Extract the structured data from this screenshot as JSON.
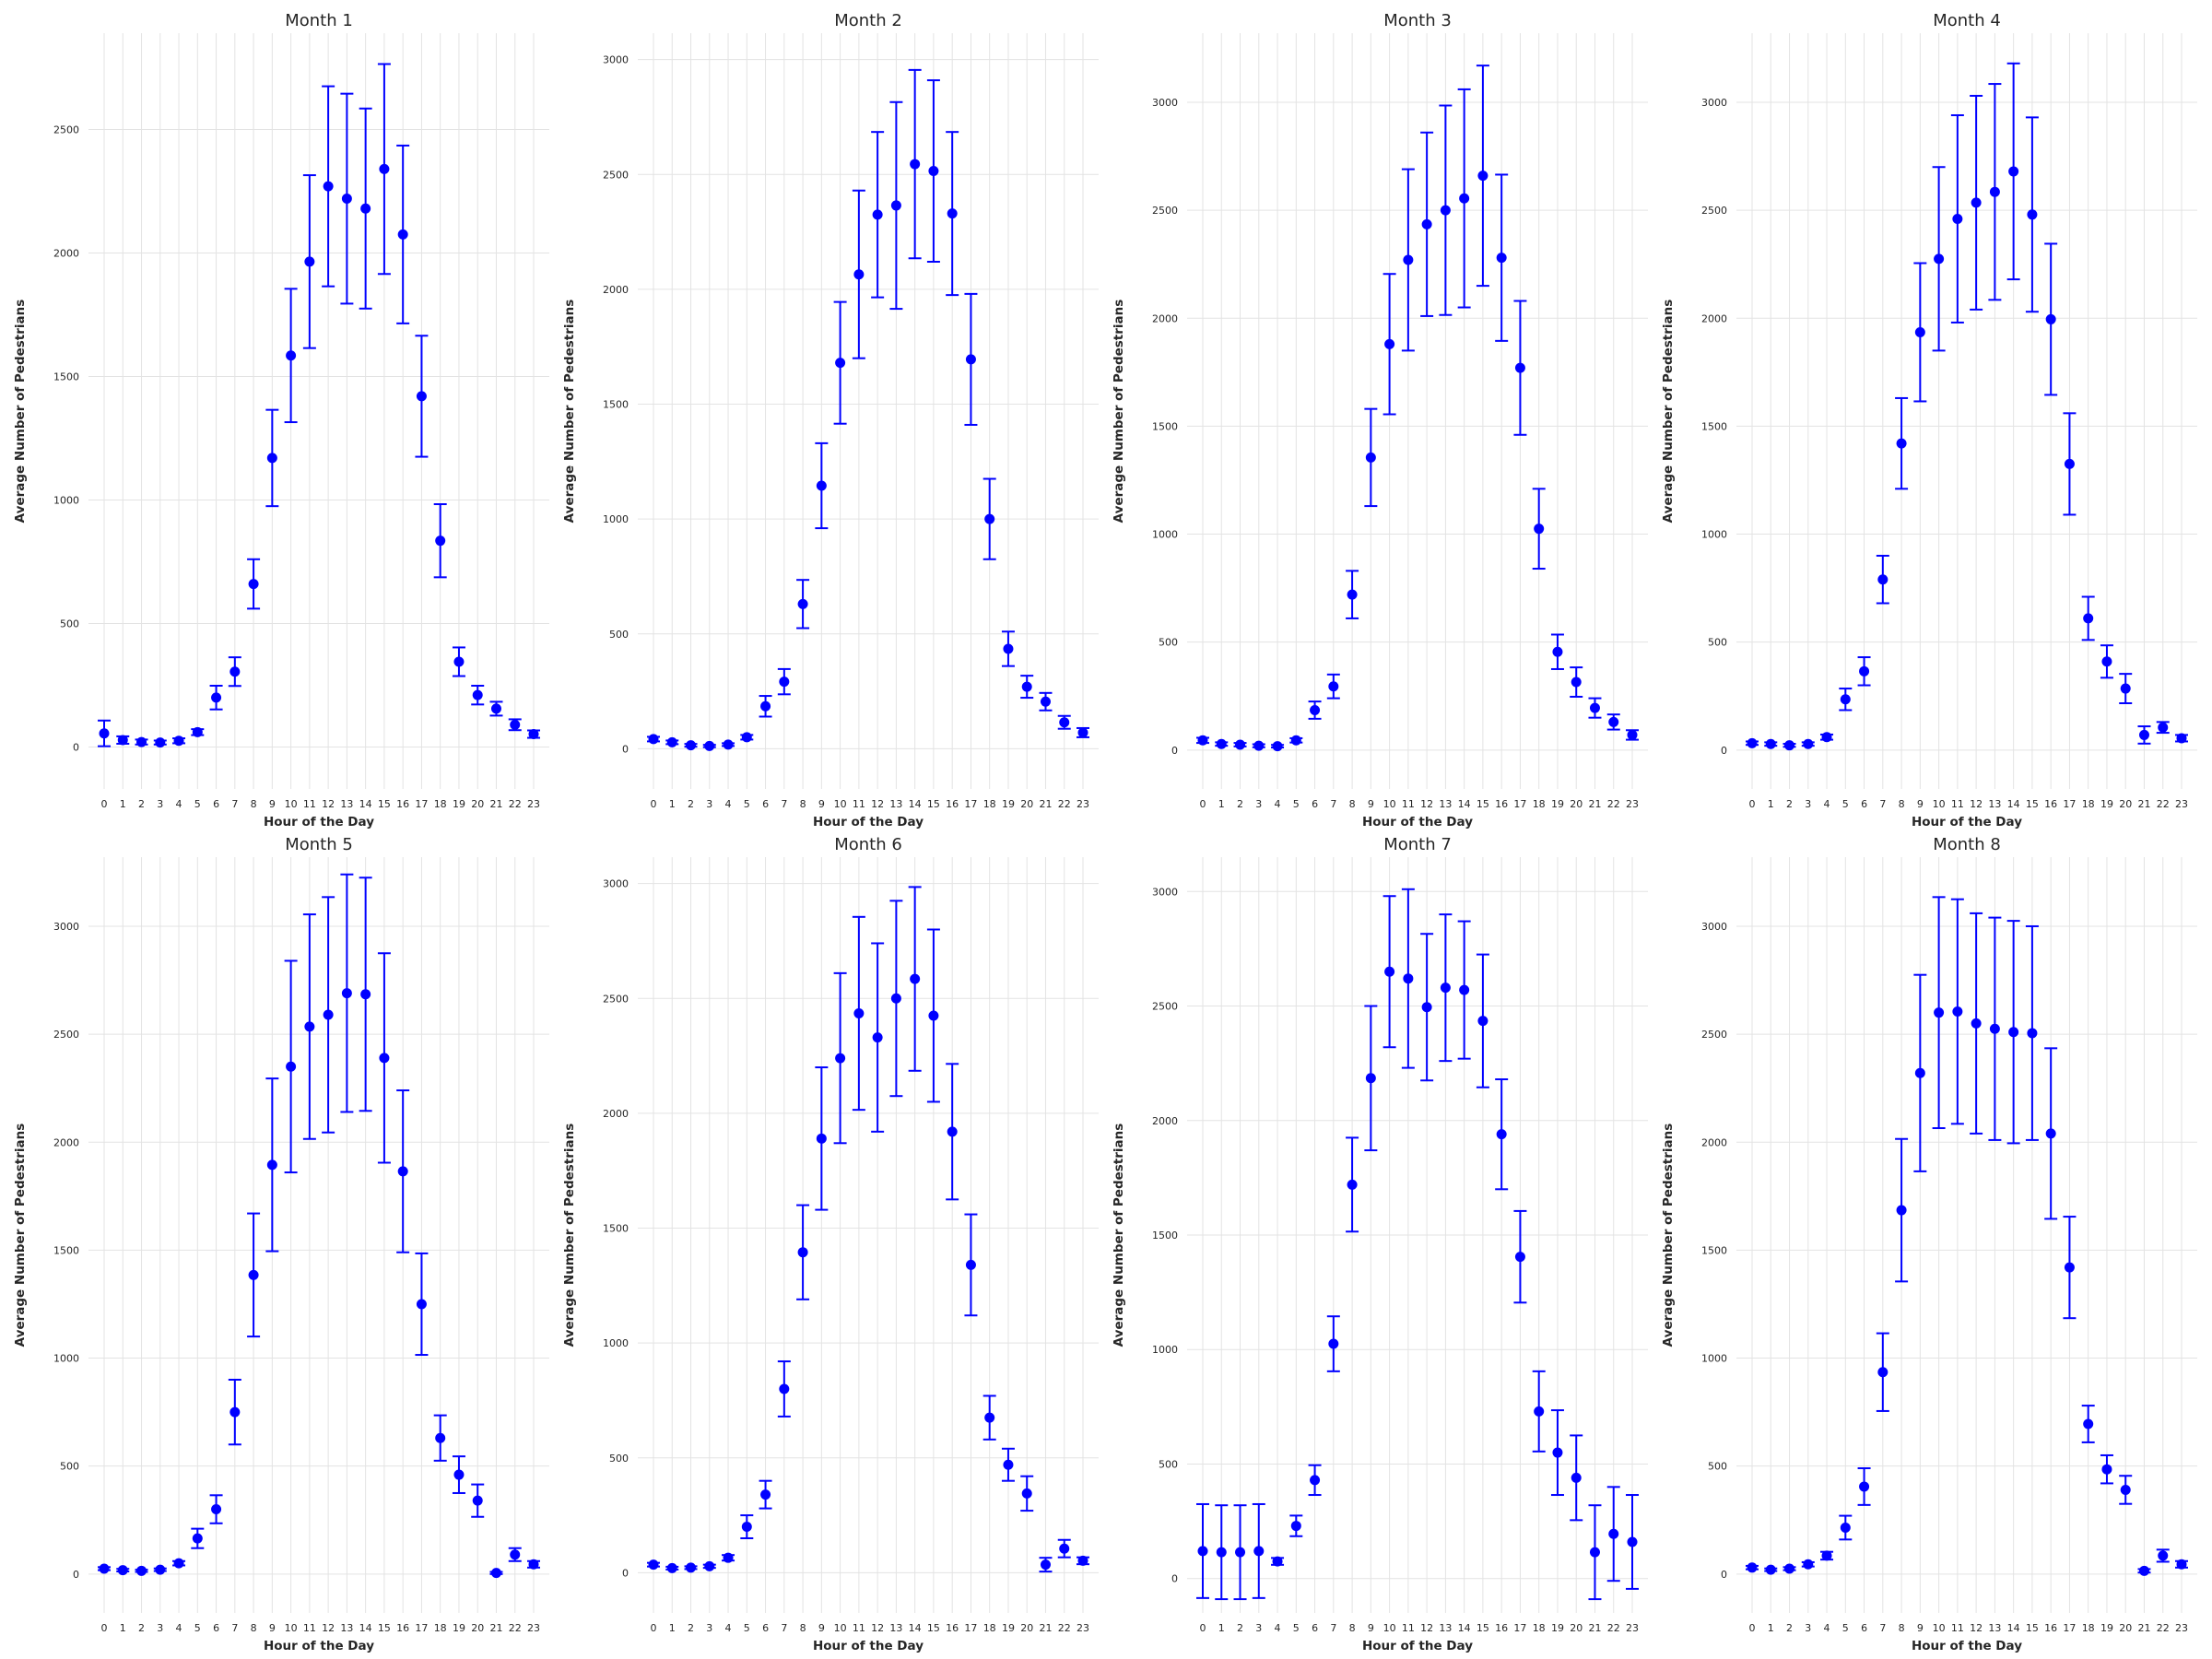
{
  "chart_data": [
    {
      "type": "scatter",
      "title": "Month 1",
      "xlabel": "Hour of the Day",
      "ylabel": "Average Number of Pedestrians",
      "x": [
        0,
        1,
        2,
        3,
        4,
        5,
        6,
        7,
        8,
        9,
        10,
        11,
        12,
        13,
        14,
        15,
        16,
        17,
        18,
        19,
        20,
        21,
        22,
        23
      ],
      "yticks": [
        0,
        500,
        1000,
        1500,
        2000,
        2500
      ],
      "ylim": [
        -170,
        2890
      ],
      "values": [
        55,
        28,
        20,
        18,
        25,
        60,
        200,
        305,
        660,
        1170,
        1585,
        1965,
        2270,
        2220,
        2180,
        2340,
        2075,
        1420,
        835,
        345,
        210,
        155,
        90,
        52
      ],
      "errors": [
        52,
        15,
        10,
        8,
        10,
        12,
        48,
        58,
        100,
        195,
        270,
        350,
        405,
        425,
        405,
        425,
        360,
        245,
        148,
        58,
        38,
        28,
        22,
        15
      ]
    },
    {
      "type": "scatter",
      "title": "Month 2",
      "xlabel": "Hour of the Day",
      "ylabel": "Average Number of Pedestrians",
      "x": [
        0,
        1,
        2,
        3,
        4,
        5,
        6,
        7,
        8,
        9,
        10,
        11,
        12,
        13,
        14,
        15,
        16,
        17,
        18,
        19,
        20,
        21,
        22,
        23
      ],
      "yticks": [
        0,
        500,
        1000,
        1500,
        2000,
        2500,
        3000
      ],
      "ylim": [
        -175,
        3115
      ],
      "values": [
        42,
        28,
        15,
        12,
        18,
        50,
        185,
        292,
        630,
        1145,
        1680,
        2065,
        2325,
        2365,
        2545,
        2515,
        2330,
        1695,
        1000,
        435,
        270,
        205,
        115,
        70
      ],
      "errors": [
        10,
        8,
        6,
        5,
        6,
        10,
        45,
        55,
        105,
        185,
        265,
        365,
        360,
        450,
        410,
        395,
        355,
        285,
        175,
        75,
        48,
        38,
        28,
        20
      ]
    },
    {
      "type": "scatter",
      "title": "Month 3",
      "xlabel": "Hour of the Day",
      "ylabel": "Average Number of Pedestrians",
      "x": [
        0,
        1,
        2,
        3,
        4,
        5,
        6,
        7,
        8,
        9,
        10,
        11,
        12,
        13,
        14,
        15,
        16,
        17,
        18,
        19,
        20,
        21,
        22,
        23
      ],
      "yticks": [
        0,
        500,
        1000,
        1500,
        2000,
        2500,
        3000
      ],
      "ylim": [
        -180,
        3320
      ],
      "values": [
        45,
        28,
        25,
        20,
        18,
        45,
        185,
        295,
        720,
        1355,
        1880,
        2270,
        2435,
        2500,
        2555,
        2660,
        2280,
        1770,
        1025,
        455,
        315,
        195,
        130,
        70
      ],
      "errors": [
        12,
        8,
        8,
        7,
        6,
        10,
        40,
        55,
        110,
        225,
        325,
        420,
        425,
        485,
        505,
        510,
        385,
        310,
        185,
        80,
        68,
        45,
        35,
        22
      ]
    },
    {
      "type": "scatter",
      "title": "Month 4",
      "xlabel": "Hour of the Day",
      "ylabel": "Average Number of Pedestrians",
      "x": [
        0,
        1,
        2,
        3,
        4,
        5,
        6,
        7,
        8,
        9,
        10,
        11,
        12,
        13,
        14,
        15,
        16,
        17,
        18,
        19,
        20,
        21,
        22,
        23
      ],
      "yticks": [
        0,
        500,
        1000,
        1500,
        2000,
        2500,
        3000
      ],
      "ylim": [
        -180,
        3320
      ],
      "values": [
        32,
        28,
        22,
        28,
        60,
        235,
        365,
        790,
        1420,
        1935,
        2275,
        2460,
        2535,
        2585,
        2680,
        2480,
        1995,
        1325,
        610,
        410,
        285,
        70,
        105,
        55
      ],
      "errors": [
        8,
        8,
        7,
        8,
        12,
        50,
        65,
        110,
        210,
        320,
        425,
        480,
        495,
        500,
        500,
        450,
        350,
        235,
        100,
        75,
        68,
        40,
        25,
        15
      ]
    },
    {
      "type": "scatter",
      "title": "Month 5",
      "xlabel": "Hour of the Day",
      "ylabel": "Average Number of Pedestrians",
      "x": [
        0,
        1,
        2,
        3,
        4,
        5,
        6,
        7,
        8,
        9,
        10,
        11,
        12,
        13,
        14,
        15,
        16,
        17,
        18,
        19,
        20,
        21,
        22,
        23
      ],
      "yticks": [
        0,
        500,
        1000,
        1500,
        2000,
        2500,
        3000
      ],
      "ylim": [
        -180,
        3320
      ],
      "values": [
        25,
        18,
        15,
        20,
        50,
        165,
        300,
        750,
        1385,
        1895,
        2350,
        2535,
        2590,
        2690,
        2685,
        2390,
        1865,
        1250,
        630,
        460,
        340,
        5,
        90,
        45
      ],
      "errors": [
        7,
        6,
        5,
        6,
        10,
        45,
        65,
        150,
        285,
        400,
        490,
        520,
        545,
        550,
        540,
        485,
        375,
        235,
        105,
        85,
        75,
        5,
        30,
        15
      ]
    },
    {
      "type": "scatter",
      "title": "Month 6",
      "xlabel": "Hour of the Day",
      "ylabel": "Average Number of Pedestrians",
      "x": [
        0,
        1,
        2,
        3,
        4,
        5,
        6,
        7,
        8,
        9,
        10,
        11,
        12,
        13,
        14,
        15,
        16,
        17,
        18,
        19,
        20,
        21,
        22,
        23
      ],
      "yticks": [
        0,
        500,
        1000,
        1500,
        2000,
        2500,
        3000
      ],
      "ylim": [
        -175,
        3115
      ],
      "values": [
        35,
        20,
        22,
        28,
        65,
        200,
        340,
        800,
        1395,
        1890,
        2240,
        2435,
        2330,
        2500,
        2585,
        2425,
        1920,
        1340,
        675,
        470,
        345,
        35,
        105,
        52
      ],
      "errors": [
        8,
        6,
        6,
        7,
        12,
        50,
        60,
        120,
        205,
        310,
        370,
        420,
        410,
        425,
        400,
        375,
        295,
        220,
        95,
        70,
        75,
        30,
        38,
        15
      ]
    },
    {
      "type": "scatter",
      "title": "Month 7",
      "xlabel": "Hour of the Day",
      "ylabel": "Average Number of Pedestrians",
      "x": [
        0,
        1,
        2,
        3,
        4,
        5,
        6,
        7,
        8,
        9,
        10,
        11,
        12,
        13,
        14,
        15,
        16,
        17,
        18,
        19,
        20,
        21,
        22,
        23
      ],
      "yticks": [
        0,
        500,
        1000,
        1500,
        2000,
        2500,
        3000
      ],
      "ylim": [
        -150,
        3150
      ],
      "values": [
        120,
        115,
        115,
        120,
        75,
        230,
        430,
        1025,
        1720,
        2185,
        2650,
        2620,
        2495,
        2580,
        2570,
        2435,
        1940,
        1405,
        730,
        550,
        440,
        115,
        195,
        160
      ],
      "errors": [
        205,
        205,
        205,
        205,
        15,
        45,
        65,
        120,
        205,
        315,
        330,
        390,
        320,
        320,
        300,
        290,
        240,
        200,
        175,
        185,
        185,
        205,
        205,
        205
      ]
    },
    {
      "type": "scatter",
      "title": "Month 8",
      "xlabel": "Hour of the Day",
      "ylabel": "Average Number of Pedestrians",
      "x": [
        0,
        1,
        2,
        3,
        4,
        5,
        6,
        7,
        8,
        9,
        10,
        11,
        12,
        13,
        14,
        15,
        16,
        17,
        18,
        19,
        20,
        21,
        22,
        23
      ],
      "yticks": [
        0,
        500,
        1000,
        1500,
        2000,
        2500,
        3000
      ],
      "ylim": [
        -180,
        3320
      ],
      "values": [
        30,
        20,
        25,
        45,
        85,
        215,
        405,
        935,
        1685,
        2320,
        2600,
        2605,
        2550,
        2525,
        2510,
        2505,
        2040,
        1420,
        695,
        485,
        390,
        15,
        85,
        45
      ],
      "errors": [
        8,
        6,
        7,
        10,
        18,
        55,
        85,
        180,
        330,
        455,
        535,
        520,
        510,
        515,
        515,
        495,
        395,
        235,
        85,
        65,
        65,
        8,
        28,
        15
      ]
    }
  ]
}
